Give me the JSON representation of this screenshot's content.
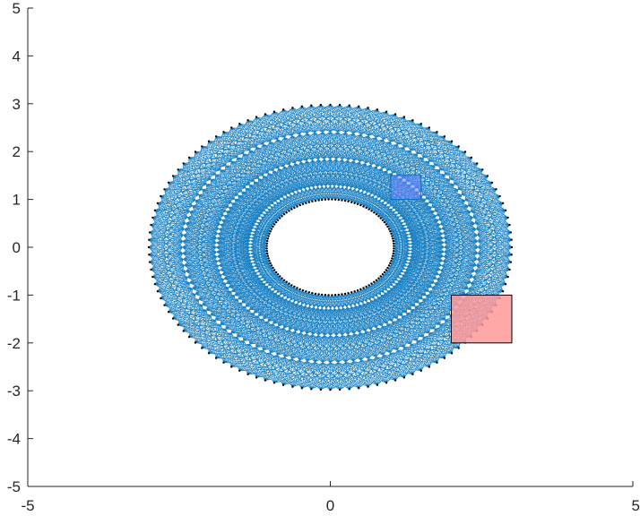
{
  "chart_data": {
    "type": "scatter",
    "title": "",
    "xlabel": "",
    "ylabel": "",
    "xlim": [
      -5,
      5
    ],
    "ylim": [
      -5,
      5
    ],
    "x_ticks": [
      -5,
      0,
      5
    ],
    "y_ticks": [
      -5,
      -4,
      -3,
      -2,
      -1,
      0,
      1,
      2,
      3,
      4,
      5
    ],
    "x_tick_labels": [
      "-5",
      "0",
      "5"
    ],
    "y_tick_labels": [
      "-5",
      "-4",
      "-3",
      "-2",
      "-1",
      "0",
      "1",
      "2",
      "3",
      "4",
      "5"
    ],
    "grid": false,
    "box": false,
    "ring": {
      "center": [
        0,
        0
      ],
      "outer_radii": [
        3.0,
        2.98
      ],
      "inner_radii": [
        1.05,
        1.0
      ],
      "nodes_per_ring": 120,
      "ring_count": 8,
      "edge_color": "#0072BD",
      "node_color": "#000000"
    },
    "rectangles": [
      {
        "name": "obstacle-red",
        "x": 2.0,
        "y": -2.0,
        "width": 1.0,
        "height": 1.0,
        "fill": "#FF9999",
        "stroke": "#000000"
      },
      {
        "name": "obstacle-blue",
        "x": 1.0,
        "y": 1.0,
        "width": 0.5,
        "height": 0.5,
        "fill": "#6F82FF",
        "stroke": "#0072BD"
      }
    ]
  }
}
